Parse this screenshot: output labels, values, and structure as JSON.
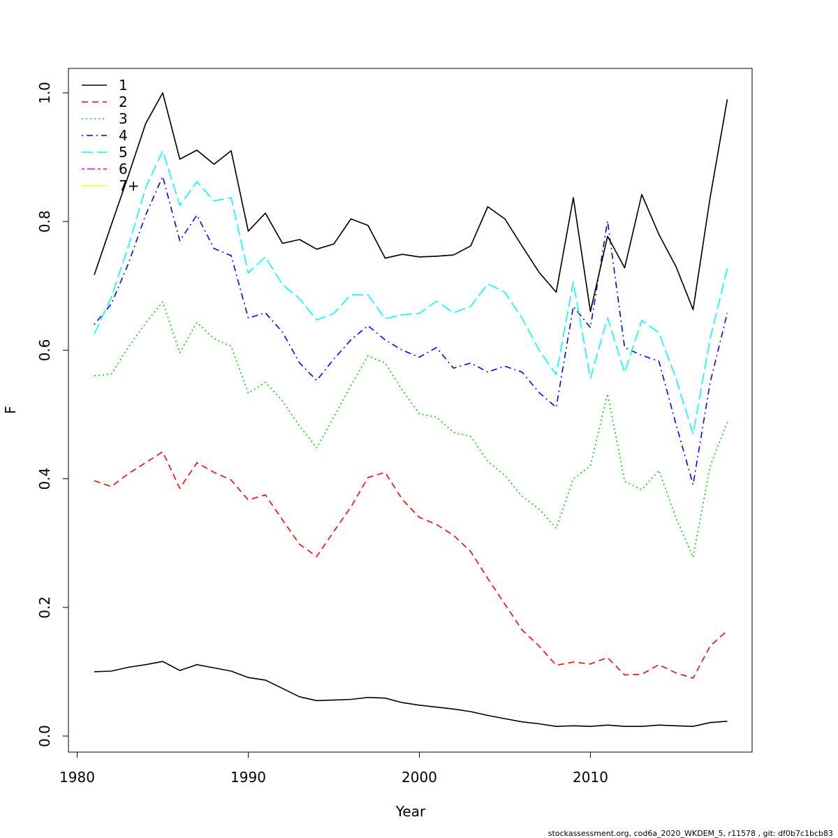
{
  "chart_data": {
    "type": "line",
    "xlabel": "Year",
    "ylabel": "F",
    "xlim": [
      1980,
      2018
    ],
    "ylim": [
      0,
      1
    ],
    "xticks": [
      "1980",
      "1990",
      "2000",
      "2010"
    ],
    "yticks": [
      "0.0",
      "0.2",
      "0.4",
      "0.6",
      "0.8",
      "1.0"
    ],
    "grid": false,
    "legend_position": "top-left",
    "x": [
      1981,
      1982,
      1983,
      1984,
      1985,
      1986,
      1987,
      1988,
      1989,
      1990,
      1991,
      1992,
      1993,
      1994,
      1995,
      1996,
      1997,
      1998,
      1999,
      2000,
      2001,
      2002,
      2003,
      2004,
      2005,
      2006,
      2007,
      2008,
      2009,
      2010,
      2011,
      2012,
      2013,
      2014,
      2015,
      2016,
      2017,
      2018
    ],
    "series": [
      {
        "name": "1",
        "color": "#000000",
        "dash": "solid",
        "values": [
          0.1,
          0.101,
          0.107,
          0.111,
          0.116,
          0.102,
          0.111,
          0.106,
          0.101,
          0.091,
          0.087,
          0.074,
          0.061,
          0.055,
          0.056,
          0.057,
          0.06,
          0.059,
          0.052,
          0.048,
          0.045,
          0.042,
          0.038,
          0.032,
          0.027,
          0.022,
          0.019,
          0.015,
          0.016,
          0.015,
          0.017,
          0.015,
          0.015,
          0.017,
          0.016,
          0.015,
          0.021,
          0.023
        ]
      },
      {
        "name": "2",
        "color": "#ff0000",
        "dash": "dashed",
        "values": [
          0.397,
          0.388,
          0.408,
          0.425,
          0.442,
          0.385,
          0.425,
          0.41,
          0.398,
          0.367,
          0.375,
          0.336,
          0.298,
          0.279,
          0.318,
          0.356,
          0.402,
          0.41,
          0.368,
          0.34,
          0.329,
          0.312,
          0.287,
          0.245,
          0.205,
          0.165,
          0.14,
          0.11,
          0.115,
          0.112,
          0.122,
          0.095,
          0.096,
          0.111,
          0.098,
          0.09,
          0.14,
          0.164
        ]
      },
      {
        "name": "3",
        "color": "#00cd00",
        "dash": "dotted",
        "values": [
          0.56,
          0.563,
          0.605,
          0.642,
          0.675,
          0.596,
          0.643,
          0.618,
          0.606,
          0.533,
          0.55,
          0.521,
          0.482,
          0.448,
          0.496,
          0.545,
          0.591,
          0.58,
          0.538,
          0.501,
          0.496,
          0.472,
          0.466,
          0.427,
          0.405,
          0.373,
          0.353,
          0.323,
          0.4,
          0.42,
          0.532,
          0.396,
          0.383,
          0.413,
          0.339,
          0.278,
          0.42,
          0.488
        ]
      },
      {
        "name": "4",
        "color": "#0000ff",
        "dash": "dotdash",
        "values": [
          0.64,
          0.672,
          0.735,
          0.81,
          0.87,
          0.77,
          0.81,
          0.758,
          0.747,
          0.65,
          0.658,
          0.628,
          0.58,
          0.553,
          0.586,
          0.616,
          0.638,
          0.616,
          0.6,
          0.589,
          0.604,
          0.572,
          0.58,
          0.566,
          0.575,
          0.566,
          0.534,
          0.511,
          0.668,
          0.635,
          0.801,
          0.604,
          0.592,
          0.583,
          0.485,
          0.391,
          0.55,
          0.658
        ]
      },
      {
        "name": "5",
        "color": "#00ffff",
        "dash": "longdash",
        "values": [
          0.625,
          0.682,
          0.762,
          0.852,
          0.91,
          0.825,
          0.862,
          0.832,
          0.837,
          0.72,
          0.745,
          0.702,
          0.68,
          0.647,
          0.657,
          0.686,
          0.686,
          0.649,
          0.655,
          0.657,
          0.676,
          0.658,
          0.668,
          0.703,
          0.69,
          0.65,
          0.6,
          0.562,
          0.706,
          0.556,
          0.65,
          0.565,
          0.646,
          0.627,
          0.556,
          0.47,
          0.618,
          0.727
        ]
      },
      {
        "name": "6",
        "color": "#ff00ff",
        "dash": "twodash",
        "values": [
          0.717,
          0.795,
          0.872,
          0.952,
          1.0,
          0.897,
          0.911,
          0.889,
          0.91,
          0.785,
          0.813,
          0.766,
          0.772,
          0.757,
          0.765,
          0.804,
          0.794,
          0.743,
          0.749,
          0.745,
          0.746,
          0.748,
          0.762,
          0.823,
          0.804,
          0.762,
          0.721,
          0.69,
          0.837,
          0.66,
          0.777,
          0.728,
          0.842,
          0.78,
          0.73,
          0.663,
          0.838,
          0.99
        ]
      },
      {
        "name": "7+",
        "color": "#ffff00",
        "dash": "solid",
        "values": [
          0.717,
          0.795,
          0.872,
          0.952,
          1.0,
          0.897,
          0.911,
          0.889,
          0.91,
          0.785,
          0.813,
          0.766,
          0.772,
          0.757,
          0.765,
          0.804,
          0.794,
          0.743,
          0.749,
          0.745,
          0.746,
          0.748,
          0.762,
          0.823,
          0.804,
          0.762,
          0.721,
          0.69,
          0.837,
          0.66,
          0.777,
          0.728,
          0.842,
          0.78,
          0.73,
          0.663,
          0.838,
          0.99
        ]
      },
      {
        "name": "",
        "color": "#000000",
        "dash": "solid",
        "values": [
          0.717,
          0.795,
          0.872,
          0.952,
          1.0,
          0.897,
          0.911,
          0.889,
          0.91,
          0.785,
          0.813,
          0.766,
          0.772,
          0.757,
          0.765,
          0.804,
          0.794,
          0.743,
          0.749,
          0.745,
          0.746,
          0.748,
          0.762,
          0.823,
          0.804,
          0.762,
          0.721,
          0.69,
          0.837,
          0.66,
          0.777,
          0.728,
          0.842,
          0.78,
          0.73,
          0.663,
          0.838,
          0.99
        ]
      }
    ],
    "footer": "stockassessment.org, cod6a_2020_WKDEM_5, r11578 , git: df0b7c1bcb83"
  }
}
